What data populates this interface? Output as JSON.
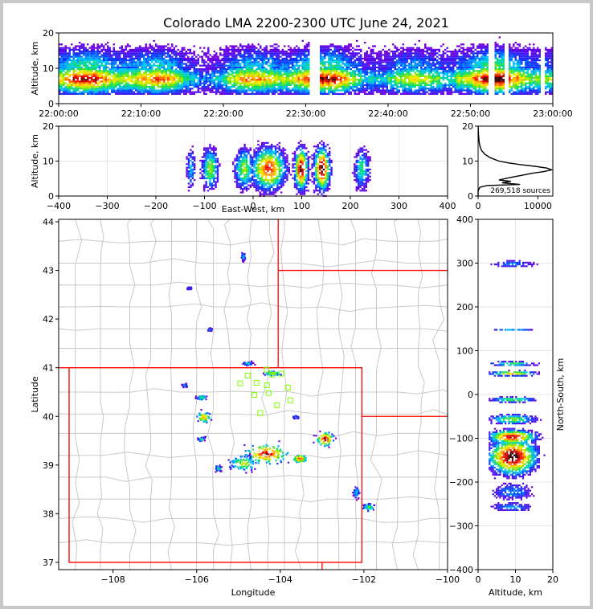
{
  "title": "Colorado LMA 2200-2300 UTC June 24, 2021",
  "colors": {
    "state_border": "#ff0000",
    "county_border": "#c8c8c8",
    "station": "#7fff00",
    "frame": "#000000",
    "background": "#ffffff"
  },
  "chart_data": [
    {
      "id": "time-height",
      "type": "heatmap",
      "ylabel": "Altitude, km",
      "xlabel": "",
      "xlim": [
        "22:00:00",
        "23:00:00"
      ],
      "x_ticks": [
        "22:00:00",
        "22:10:00",
        "22:20:00",
        "22:30:00",
        "22:40:00",
        "22:50:00",
        "23:00:00"
      ],
      "ylim": [
        0,
        20
      ],
      "y_ticks": [
        "0",
        "10",
        "20"
      ],
      "gaps": [
        [
          "22:30:20",
          "22:31:30"
        ],
        [
          "22:52:10",
          "22:52:50"
        ],
        [
          "22:54:00",
          "22:54:30"
        ],
        [
          "22:58:30",
          "22:59:00"
        ]
      ]
    },
    {
      "id": "ew-altitude",
      "type": "heatmap",
      "xlabel": "East-West, km",
      "ylabel": "Altitude, km",
      "xlim": [
        -400,
        400
      ],
      "x_ticks": [
        "−400",
        "−300",
        "−200",
        "−100",
        "0",
        "100",
        "200",
        "300",
        "400"
      ],
      "ylim": [
        0,
        20
      ],
      "y_ticks": [
        "0",
        "10",
        "20"
      ]
    },
    {
      "id": "altitude-histogram",
      "type": "line",
      "annotation": "269,518 sources",
      "xlim": [
        0,
        12500
      ],
      "x_ticks": [
        "0",
        "10000"
      ],
      "ylim": [
        0,
        20
      ],
      "y_ticks": [
        "0",
        "10",
        "20"
      ],
      "profile": {
        "altitude_km": [
          0,
          1.5,
          2.5,
          3.0,
          3.3,
          3.8,
          4.2,
          4.6,
          5.0,
          5.5,
          6.0,
          6.5,
          7.0,
          7.5,
          8.0,
          8.5,
          9.0,
          9.5,
          10,
          11,
          12,
          13,
          14,
          15,
          16,
          17,
          18,
          19,
          20
        ],
        "count": [
          0,
          0,
          300,
          1500,
          7000,
          4000,
          5500,
          3500,
          4500,
          6000,
          7500,
          9000,
          11000,
          12300,
          11500,
          9500,
          7000,
          5000,
          3500,
          2000,
          1100,
          600,
          350,
          220,
          150,
          100,
          60,
          30,
          15
        ]
      }
    },
    {
      "id": "plan-view",
      "type": "heatmap",
      "xlabel": "Longitude",
      "ylabel": "Latitude",
      "xlim": [
        -109.3,
        -100.0
      ],
      "x_ticks": [
        "−108",
        "−106",
        "−104",
        "−102",
        "−100"
      ],
      "ylim": [
        36.85,
        44.05
      ],
      "y_ticks": [
        "37",
        "38",
        "39",
        "40",
        "41",
        "42",
        "43",
        "44"
      ],
      "stations": [
        [
          -104.33,
          40.96
        ],
        [
          -104.19,
          40.86
        ],
        [
          -103.98,
          40.88
        ],
        [
          -104.78,
          40.84
        ],
        [
          -104.96,
          40.68
        ],
        [
          -104.57,
          40.69
        ],
        [
          -104.62,
          40.44
        ],
        [
          -104.32,
          40.64
        ],
        [
          -104.28,
          40.48
        ],
        [
          -103.82,
          40.59
        ],
        [
          -103.76,
          40.33
        ],
        [
          -104.08,
          40.23
        ],
        [
          -104.48,
          40.07
        ]
      ],
      "cells": [
        {
          "lon": -104.35,
          "lat": 39.25,
          "w": 0.9,
          "h": 0.35,
          "peak": 0.95
        },
        {
          "lon": -104.9,
          "lat": 39.05,
          "w": 0.6,
          "h": 0.3,
          "peak": 0.6
        },
        {
          "lon": -103.55,
          "lat": 39.15,
          "w": 0.3,
          "h": 0.15,
          "peak": 0.9
        },
        {
          "lon": -102.95,
          "lat": 39.55,
          "w": 0.35,
          "h": 0.25,
          "peak": 1.0
        },
        {
          "lon": -105.85,
          "lat": 40.0,
          "w": 0.3,
          "h": 0.2,
          "peak": 0.75
        },
        {
          "lon": -105.9,
          "lat": 40.4,
          "w": 0.2,
          "h": 0.1,
          "peak": 0.5
        },
        {
          "lon": -101.9,
          "lat": 38.15,
          "w": 0.25,
          "h": 0.12,
          "peak": 0.55
        },
        {
          "lon": -102.2,
          "lat": 38.45,
          "w": 0.12,
          "h": 0.2,
          "peak": 0.4
        },
        {
          "lon": -104.2,
          "lat": 40.9,
          "w": 0.35,
          "h": 0.08,
          "peak": 0.65
        },
        {
          "lon": -104.8,
          "lat": 41.1,
          "w": 0.2,
          "h": 0.06,
          "peak": 0.45
        },
        {
          "lon": -105.5,
          "lat": 38.95,
          "w": 0.12,
          "h": 0.12,
          "peak": 0.45
        },
        {
          "lon": -105.9,
          "lat": 39.55,
          "w": 0.15,
          "h": 0.08,
          "peak": 0.45
        },
        {
          "lon": -106.3,
          "lat": 40.65,
          "w": 0.1,
          "h": 0.06,
          "peak": 0.35
        },
        {
          "lon": -105.7,
          "lat": 41.8,
          "w": 0.1,
          "h": 0.05,
          "peak": 0.4
        },
        {
          "lon": -104.9,
          "lat": 43.3,
          "w": 0.08,
          "h": 0.15,
          "peak": 0.35
        },
        {
          "lon": -106.2,
          "lat": 42.65,
          "w": 0.08,
          "h": 0.05,
          "peak": 0.3
        },
        {
          "lon": -103.65,
          "lat": 40.0,
          "w": 0.1,
          "h": 0.05,
          "peak": 0.35
        }
      ]
    },
    {
      "id": "altitude-ns",
      "type": "heatmap",
      "xlabel": "Altitude, km",
      "ylabel": "North-South, km",
      "xlim": [
        0,
        20
      ],
      "x_ticks": [
        "0",
        "10",
        "20"
      ],
      "ylim": [
        -400,
        400
      ],
      "y_ticks": [
        "−400",
        "−300",
        "−200",
        "−100",
        "0",
        "100",
        "200",
        "300",
        "400"
      ]
    }
  ]
}
